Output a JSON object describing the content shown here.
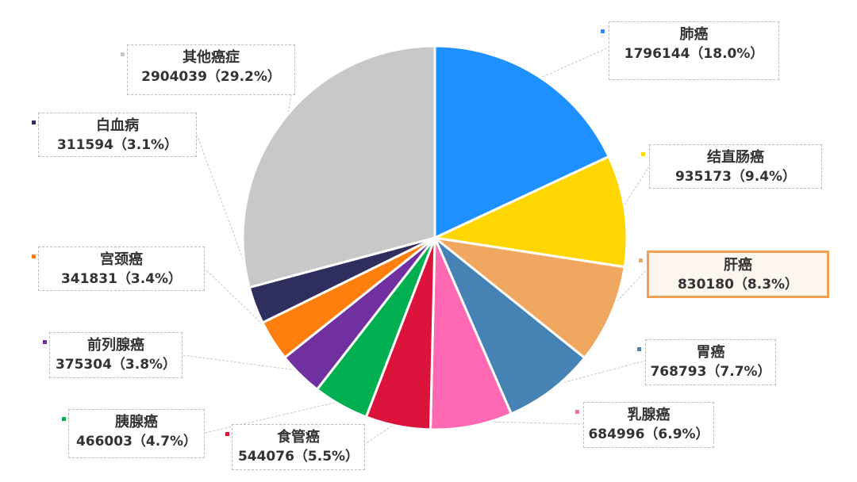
{
  "chart_data": {
    "type": "pie",
    "title": "",
    "slices": [
      {
        "label": "肺癌",
        "value": 1796144,
        "percent_text": "1796144（18.0%）",
        "color": "#1E90FF"
      },
      {
        "label": "结直肠癌",
        "value": 935173,
        "percent_text": "935173（9.4%）",
        "color": "#FFD700"
      },
      {
        "label": "肝癌",
        "value": 830180,
        "percent_text": "830180（8.3%）",
        "color": "#F0A860",
        "highlighted": true
      },
      {
        "label": "胃癌",
        "value": 768793,
        "percent_text": "768793（7.7%）",
        "color": "#4682B4"
      },
      {
        "label": "乳腺癌",
        "value": 684996,
        "percent_text": "684996（6.9%）",
        "color": "#FF69B4"
      },
      {
        "label": "食管癌",
        "value": 544076,
        "percent_text": "544076（5.5%）",
        "color": "#DC143C"
      },
      {
        "label": "胰腺癌",
        "value": 466003,
        "percent_text": "466003（4.7%）",
        "color": "#00B050"
      },
      {
        "label": "前列腺癌",
        "value": 375304,
        "percent_text": "375304（3.8%）",
        "color": "#7030A0"
      },
      {
        "label": "宫颈癌",
        "value": 341831,
        "percent_text": "341831（3.4%）",
        "color": "#FF7F0E"
      },
      {
        "label": "白血病",
        "value": 311594,
        "percent_text": "311594（3.1%）",
        "color": "#2F2F5F"
      },
      {
        "label": "其他癌症",
        "value": 2904039,
        "percent_text": "2904039（29.2%）",
        "color": "#C8C8C8"
      }
    ]
  }
}
